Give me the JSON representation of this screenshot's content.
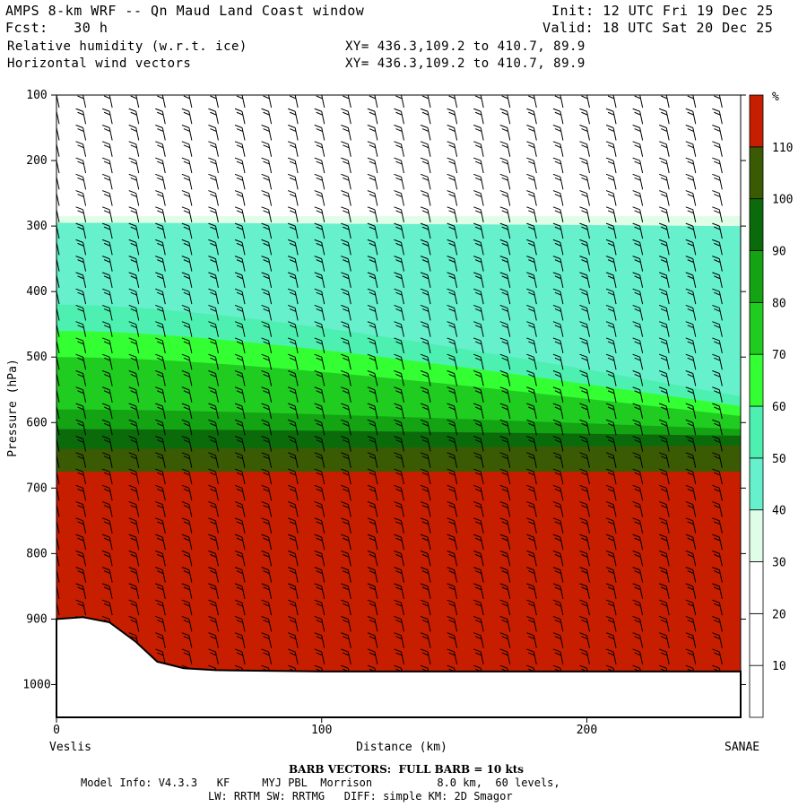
{
  "header": {
    "title": "AMPS 8-km WRF -- Qn Maud Land Coast window",
    "init": "Init: 12 UTC Fri 19 Dec 25",
    "fcst": "Fcst:   30 h",
    "valid": "Valid: 18 UTC Sat 20 Dec 25",
    "field1": "Relative humidity (w.r.t. ice)",
    "field2": "Horizontal wind vectors",
    "xy1": "XY= 436.3,109.2 to 410.7, 89.9",
    "xy2": "XY= 436.3,109.2 to 410.7, 89.9"
  },
  "footer": {
    "barb_note": "BARB VECTORS:  FULL BARB = 10 kts",
    "model_line1": "Model Info: V4.3.3   KF     MYJ PBL  Morrison          8.0 km,  60 levels,",
    "model_line2": "LW: RRTM SW: RRTMG   DIFF: simple KM: 2D Smagor"
  },
  "colorbar": {
    "unit": "%",
    "levels": [
      10,
      20,
      30,
      40,
      50,
      60,
      70,
      80,
      90,
      100,
      110
    ],
    "colors": [
      "#ffffff",
      "#ffffff",
      "#ffffff",
      "#e0fde8",
      "#66f0cc",
      "#4df0b0",
      "#33ff33",
      "#20cc20",
      "#13a313",
      "#0b6b0b",
      "#3b5a04",
      "#c81e00"
    ]
  },
  "chart_data": {
    "type": "heatmap",
    "title": "Relative humidity (w.r.t. ice)",
    "xlabel": "Distance (km)",
    "ylabel": "Pressure (hPa)",
    "xlim": [
      0,
      258
    ],
    "ylim": [
      1050,
      100
    ],
    "x_ticks": [
      0,
      100,
      200
    ],
    "y_ticks": [
      100,
      200,
      300,
      400,
      500,
      600,
      700,
      800,
      900,
      1000
    ],
    "x_endpoints": {
      "left": "Veslis",
      "right": "SANAE"
    },
    "terrain_surface_hPa": [
      {
        "x": 0,
        "p": 900
      },
      {
        "x": 10,
        "p": 897
      },
      {
        "x": 20,
        "p": 905
      },
      {
        "x": 30,
        "p": 935
      },
      {
        "x": 38,
        "p": 965
      },
      {
        "x": 48,
        "p": 975
      },
      {
        "x": 60,
        "p": 978
      },
      {
        "x": 100,
        "p": 980
      },
      {
        "x": 200,
        "p": 980
      },
      {
        "x": 258,
        "p": 980
      }
    ],
    "rh_bands": [
      {
        "level_min": 0,
        "p_top_left": 100,
        "p_top_right": 100
      },
      {
        "level_min": 30,
        "p_top_left": 285,
        "p_top_right": 285
      },
      {
        "level_min": 40,
        "p_top_left": 295,
        "p_top_right": 300
      },
      {
        "level_min": 50,
        "p_top_left": 420,
        "p_top_right": 560
      },
      {
        "level_min": 60,
        "p_top_left": 460,
        "p_top_right": 575
      },
      {
        "level_min": 70,
        "p_top_left": 500,
        "p_top_right": 590
      },
      {
        "level_min": 80,
        "p_top_left": 580,
        "p_top_right": 610
      },
      {
        "level_min": 90,
        "p_top_left": 610,
        "p_top_right": 620
      },
      {
        "level_min": 100,
        "p_top_left": 640,
        "p_top_right": 635
      },
      {
        "level_min": 110,
        "p_top_left": 675,
        "p_top_right": 675
      }
    ],
    "wind_barbs": "FULL BARB = 10 kts"
  }
}
